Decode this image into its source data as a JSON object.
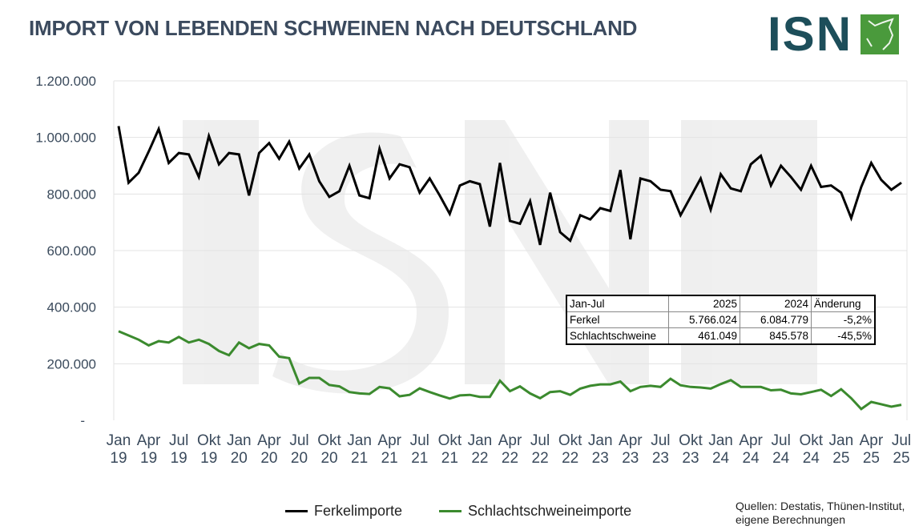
{
  "title": "IMPORT VON LEBENDEN SCHWEINEN NACH DEUTSCHLAND",
  "logo": {
    "text": "ISN",
    "icon": "pig-head-icon",
    "colors": {
      "text": "#1d4e5a",
      "box": "#4a9a3c"
    }
  },
  "colors": {
    "ferkel": "#000000",
    "schlacht": "#3b8a2e",
    "grid": "#e3e3e3"
  },
  "chart_data": {
    "type": "line",
    "ylim": [
      0,
      1200000
    ],
    "y_ticks": [
      "-",
      "200.000",
      "400.000",
      "600.000",
      "800.000",
      "1.000.000",
      "1.200.000"
    ],
    "x_tick_labels": [
      [
        "Jan",
        "19"
      ],
      [
        "Apr",
        "19"
      ],
      [
        "Jul",
        "19"
      ],
      [
        "Okt",
        "19"
      ],
      [
        "Jan",
        "20"
      ],
      [
        "Apr",
        "20"
      ],
      [
        "Jul",
        "20"
      ],
      [
        "Okt",
        "20"
      ],
      [
        "Jan",
        "21"
      ],
      [
        "Apr",
        "21"
      ],
      [
        "Jul",
        "21"
      ],
      [
        "Okt",
        "21"
      ],
      [
        "Jan",
        "22"
      ],
      [
        "Apr",
        "22"
      ],
      [
        "Jul",
        "22"
      ],
      [
        "Okt",
        "22"
      ],
      [
        "Jan",
        "23"
      ],
      [
        "Apr",
        "23"
      ],
      [
        "Jul",
        "23"
      ],
      [
        "Okt",
        "23"
      ],
      [
        "Jan",
        "24"
      ],
      [
        "Apr",
        "24"
      ],
      [
        "Jul",
        "24"
      ],
      [
        "Okt",
        "24"
      ],
      [
        "Jan",
        "25"
      ],
      [
        "Apr",
        "25"
      ],
      [
        "Jul",
        "25"
      ]
    ],
    "x_start": "2019-01",
    "x_end": "2025-07",
    "grid": true,
    "legend_placement": "bottom",
    "series": [
      {
        "name": "Ferkelimporte",
        "color": "#000000",
        "values": [
          1040000,
          840000,
          875000,
          950000,
          1030000,
          910000,
          945000,
          940000,
          860000,
          1005000,
          905000,
          945000,
          940000,
          795000,
          945000,
          980000,
          925000,
          985000,
          890000,
          940000,
          845000,
          790000,
          810000,
          900000,
          795000,
          785000,
          960000,
          855000,
          905000,
          895000,
          805000,
          855000,
          795000,
          730000,
          830000,
          845000,
          835000,
          685000,
          910000,
          705000,
          695000,
          775000,
          620000,
          805000,
          665000,
          635000,
          725000,
          710000,
          750000,
          740000,
          885000,
          640000,
          855000,
          845000,
          815000,
          810000,
          725000,
          790000,
          855000,
          745000,
          870000,
          820000,
          810000,
          905000,
          935000,
          830000,
          900000,
          860000,
          815000,
          900000,
          825000,
          830000,
          805000,
          715000,
          825000,
          910000,
          850000,
          815000,
          840000
        ]
      },
      {
        "name": "Schlachtschweineimporte",
        "color": "#3b8a2e",
        "values": [
          315000,
          300000,
          285000,
          265000,
          280000,
          275000,
          295000,
          275000,
          285000,
          270000,
          245000,
          230000,
          275000,
          255000,
          270000,
          265000,
          225000,
          220000,
          130000,
          150000,
          150000,
          125000,
          120000,
          100000,
          95000,
          93000,
          118000,
          113000,
          85000,
          90000,
          113000,
          100000,
          88000,
          77000,
          88000,
          90000,
          83000,
          83000,
          140000,
          103000,
          120000,
          95000,
          78000,
          100000,
          103000,
          90000,
          112000,
          122000,
          127000,
          127000,
          137000,
          103000,
          118000,
          122000,
          118000,
          147000,
          124000,
          118000,
          116000,
          112000,
          128000,
          142000,
          118000,
          118000,
          118000,
          106000,
          108000,
          95000,
          92000,
          100000,
          108000,
          86000,
          110000,
          78000,
          40000,
          65000,
          57000,
          48000,
          55000
        ]
      }
    ]
  },
  "summary_table": {
    "header": [
      "Jan-Jul",
      "2025",
      "2024",
      "Änderung"
    ],
    "rows": [
      [
        "Ferkel",
        "5.766.024",
        "6.084.779",
        "-5,2%"
      ],
      [
        "Schlachtschweine",
        "461.049",
        "845.578",
        "-45,5%"
      ]
    ]
  },
  "legend": {
    "ferkel": "Ferkelimporte",
    "schlacht": "Schlachtschweineimporte"
  },
  "source": {
    "line1": "Quellen: Destatis, Thünen-Institut,",
    "line2": "eigene Berechnungen"
  }
}
